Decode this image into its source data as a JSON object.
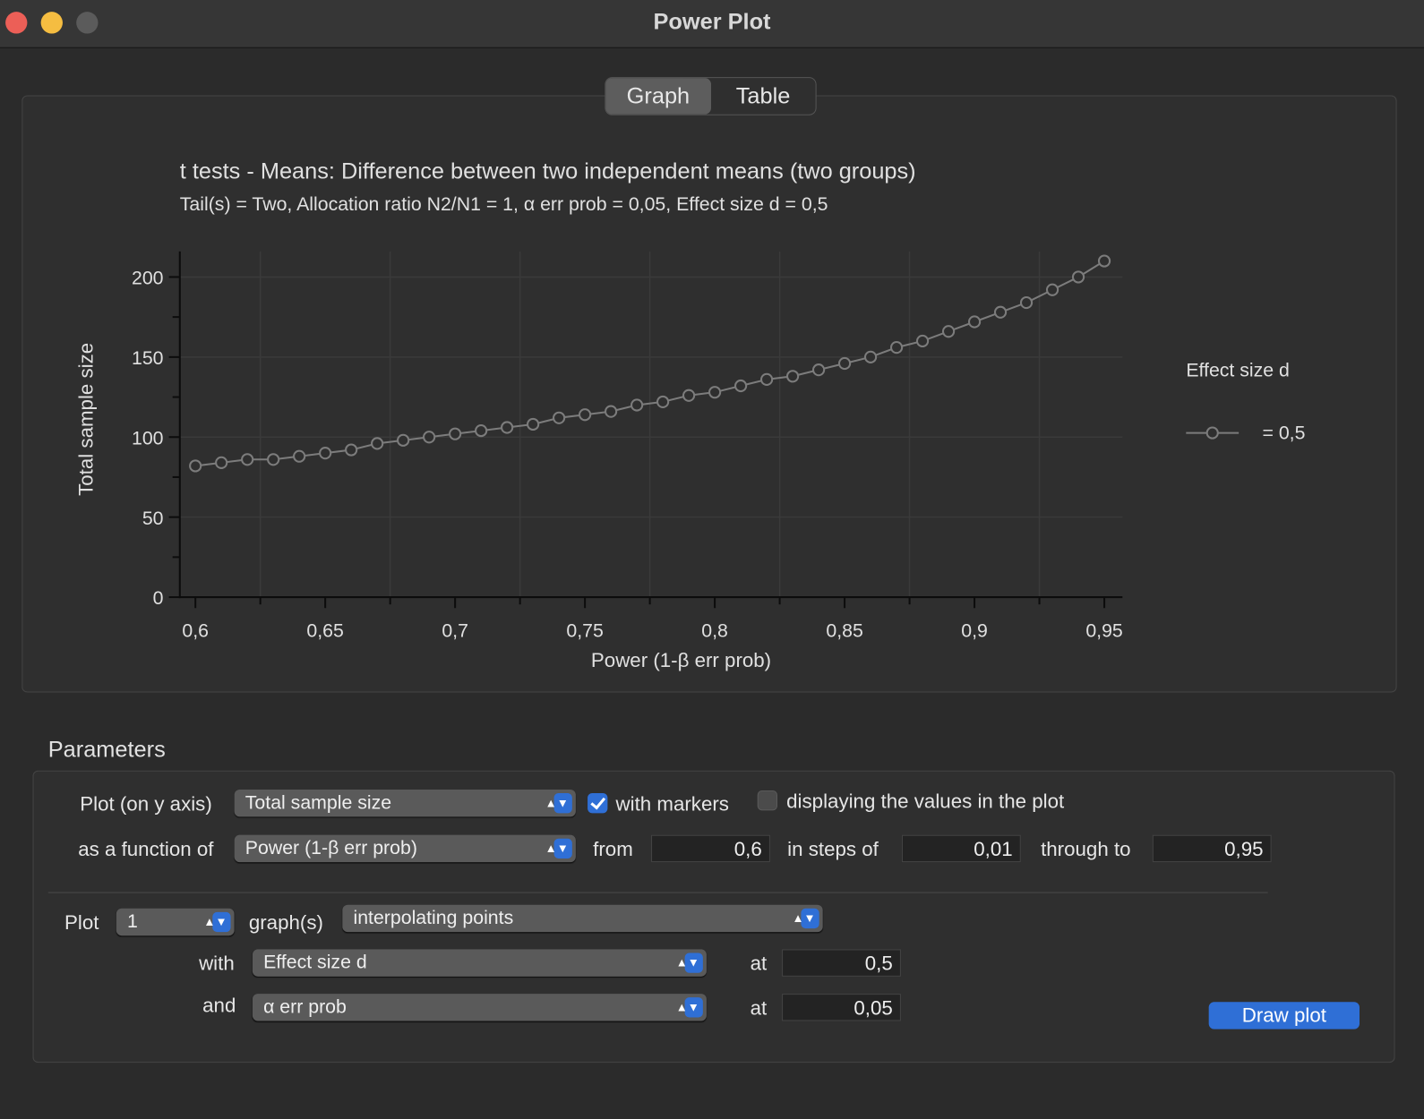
{
  "window": {
    "title": "Power Plot"
  },
  "tabs": [
    {
      "label": "Graph",
      "selected": true
    },
    {
      "label": "Table",
      "selected": false
    }
  ],
  "chart_data": {
    "type": "line",
    "title": "t tests - Means: Difference between two independent means (two groups)",
    "subtitle": "Tail(s) = Two, Allocation ratio N2/N1 = 1, α err prob = 0,05, Effect size d = 0,5",
    "x_label": "Power (1-β err prob)",
    "y_label": "Total sample size",
    "x": [
      0.6,
      0.61,
      0.62,
      0.63,
      0.64,
      0.65,
      0.66,
      0.67,
      0.68,
      0.69,
      0.7,
      0.71,
      0.72,
      0.73,
      0.74,
      0.75,
      0.76,
      0.77,
      0.78,
      0.79,
      0.8,
      0.81,
      0.82,
      0.83,
      0.84,
      0.85,
      0.86,
      0.87,
      0.88,
      0.89,
      0.9,
      0.91,
      0.92,
      0.93,
      0.94,
      0.95
    ],
    "series": [
      {
        "name": "= 0,5",
        "color": "#7c7c7c",
        "marker": "circle",
        "values": [
          82,
          84,
          86,
          86,
          88,
          90,
          92,
          96,
          98,
          100,
          102,
          104,
          106,
          108,
          112,
          114,
          116,
          120,
          122,
          126,
          128,
          132,
          136,
          138,
          142,
          146,
          150,
          156,
          160,
          166,
          172,
          178,
          184,
          192,
          200,
          210
        ]
      }
    ],
    "legend_title": "Effect size d",
    "legend_position": "right",
    "xlim": [
      0.594,
      0.957
    ],
    "ylim": [
      0,
      216
    ],
    "xticks": [
      {
        "value": 0.6,
        "label": "0,6"
      },
      {
        "value": 0.65,
        "label": "0,65"
      },
      {
        "value": 0.7,
        "label": "0,7"
      },
      {
        "value": 0.75,
        "label": "0,75"
      },
      {
        "value": 0.8,
        "label": "0,8"
      },
      {
        "value": 0.85,
        "label": "0,85"
      },
      {
        "value": 0.9,
        "label": "0,9"
      },
      {
        "value": 0.95,
        "label": "0,95"
      }
    ],
    "xminorticks": [
      0.625,
      0.675,
      0.725,
      0.775,
      0.825,
      0.875,
      0.925
    ],
    "yticks": [
      0,
      50,
      100,
      150,
      200
    ],
    "yminorticks": [
      25,
      75,
      125,
      175
    ],
    "grid": true
  },
  "parameters": {
    "title": "Parameters",
    "plot_on_y_label": "Plot (on y axis)",
    "plot_on_y_value": "Total sample size",
    "with_markers": {
      "label": "with markers",
      "checked": true
    },
    "display_values": {
      "label": "displaying the values in the plot",
      "checked": false
    },
    "function_of_label": "as a function of",
    "function_of_value": "Power (1-β err prob)",
    "from_label": "from",
    "from_value": "0,6",
    "steps_label": "in steps of",
    "steps_value": "0,01",
    "through_label": "through to",
    "through_value": "0,95",
    "plot_label": "Plot",
    "plot_count": "1",
    "graphs_label": "graph(s)",
    "graph_mode": "interpolating points",
    "with_label": "with",
    "with_value": "Effect size d",
    "with_at_label": "at",
    "with_at_value": "0,5",
    "and_label": "and",
    "and_value": "α err prob",
    "and_at_label": "at",
    "and_at_value": "0,05",
    "draw_button": "Draw plot"
  }
}
